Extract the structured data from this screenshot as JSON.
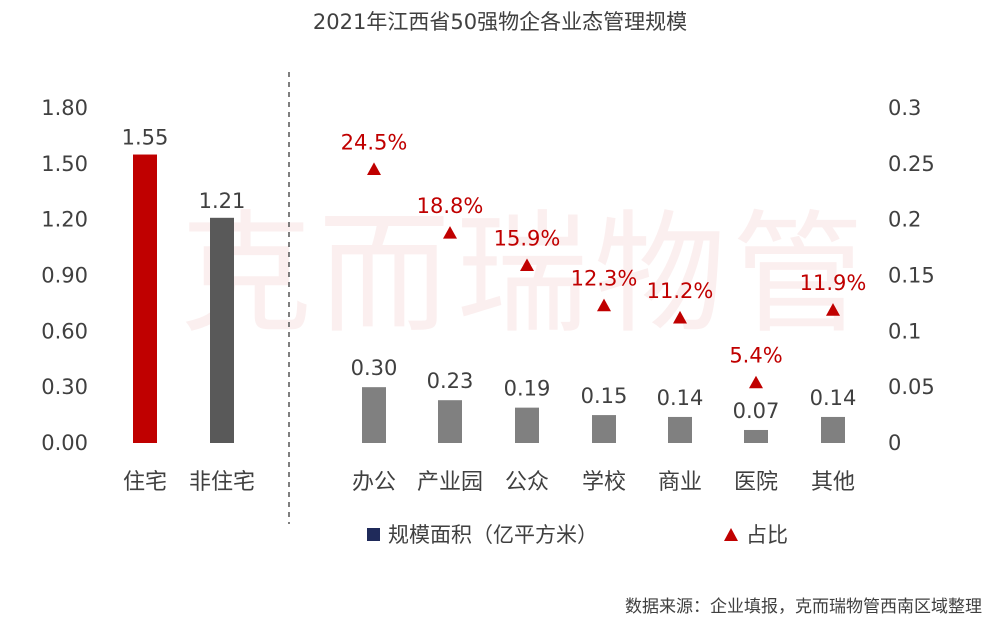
{
  "chart_data": {
    "type": "bar",
    "title": "2021年江西省50强物企各业态管理规模",
    "source": "数据来源：企业填报，克而瑞物管西南区域整理",
    "watermark": "克而瑞物管",
    "left_panel": {
      "categories": [
        "住宅",
        "非住宅"
      ],
      "values": [
        1.55,
        1.21
      ],
      "value_labels": [
        "1.55",
        "1.21"
      ],
      "colors": [
        "#c00000",
        "#595959"
      ]
    },
    "right_panel": {
      "categories": [
        "办公",
        "产业园",
        "公众",
        "学校",
        "商业",
        "医院",
        "其他"
      ],
      "bar_values": [
        0.3,
        0.23,
        0.19,
        0.15,
        0.14,
        0.07,
        0.14
      ],
      "bar_labels": [
        "0.30",
        "0.23",
        "0.19",
        "0.15",
        "0.14",
        "0.07",
        "0.14"
      ],
      "bar_color": "#808080",
      "share_values": [
        0.245,
        0.188,
        0.159,
        0.123,
        0.112,
        0.054,
        0.119
      ],
      "share_labels": [
        "24.5%",
        "18.8%",
        "15.9%",
        "12.3%",
        "11.2%",
        "5.4%",
        "11.9%"
      ],
      "marker_color": "#c00000"
    },
    "y_left": {
      "ylim": [
        0,
        1.8
      ],
      "ticks": [
        "0.00",
        "0.30",
        "0.60",
        "0.90",
        "1.20",
        "1.50",
        "1.80"
      ]
    },
    "y_right": {
      "ylim": [
        0,
        0.3
      ],
      "ticks": [
        "0",
        "0.05",
        "0.1",
        "0.15",
        "0.2",
        "0.25",
        "0.3"
      ]
    },
    "legend": {
      "placement": "bottom",
      "items": [
        {
          "name": "规模面积（亿平方米）",
          "marker": "square",
          "color": "#1f2a5a"
        },
        {
          "name": "占比",
          "marker": "triangle",
          "color": "#c00000"
        }
      ]
    }
  }
}
